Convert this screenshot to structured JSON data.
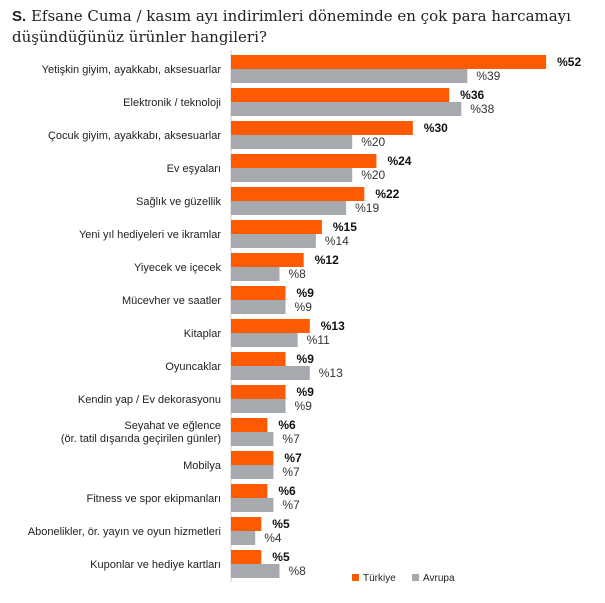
{
  "title": {
    "prefix": "S.",
    "text": "Efsane Cuma / kasım ayı indirimleri döneminde en çok para harcamayı düşündüğünüz ürünler hangileri?"
  },
  "chart_data": {
    "type": "bar",
    "orientation": "horizontal",
    "title": "S. Efsane Cuma / kasım ayı indirimleri döneminde en çok para harcamayı düşündüğünüz ürünler hangileri?",
    "value_prefix": "%",
    "categories": [
      [
        "Yetişkin giyim, ayakkabı, aksesuarlar"
      ],
      [
        "Elektronik / teknoloji"
      ],
      [
        "Çocuk giyim, ayakkabı, aksesuarlar"
      ],
      [
        "Ev eşyaları"
      ],
      [
        "Sağlık ve güzellik"
      ],
      [
        "Yeni yıl hediyeleri ve ikramlar"
      ],
      [
        "Yiyecek ve içecek"
      ],
      [
        "Mücevher ve saatler"
      ],
      [
        "Kitaplar"
      ],
      [
        "Oyuncaklar"
      ],
      [
        "Kendin yap / Ev dekorasyonu"
      ],
      [
        "Seyahat ve eğlence",
        "(ör. tatil dışarıda geçirilen günler)"
      ],
      [
        "Mobilya"
      ],
      [
        "Fitness ve spor ekipmanları"
      ],
      [
        "Abonelikler, ör. yayın ve oyun hizmetleri"
      ],
      [
        "Kuponlar ve hediye kartları"
      ]
    ],
    "series": [
      {
        "name": "Türkiye",
        "color": "#ff5a00",
        "values": [
          52,
          36,
          30,
          24,
          22,
          15,
          12,
          9,
          13,
          9,
          9,
          6,
          7,
          6,
          5,
          5
        ]
      },
      {
        "name": "Avrupa",
        "color": "#a6a9ad",
        "values": [
          39,
          38,
          20,
          20,
          19,
          14,
          8,
          9,
          11,
          13,
          9,
          7,
          7,
          7,
          4,
          8
        ]
      }
    ],
    "legend_position": "bottom-right",
    "grid": false
  }
}
